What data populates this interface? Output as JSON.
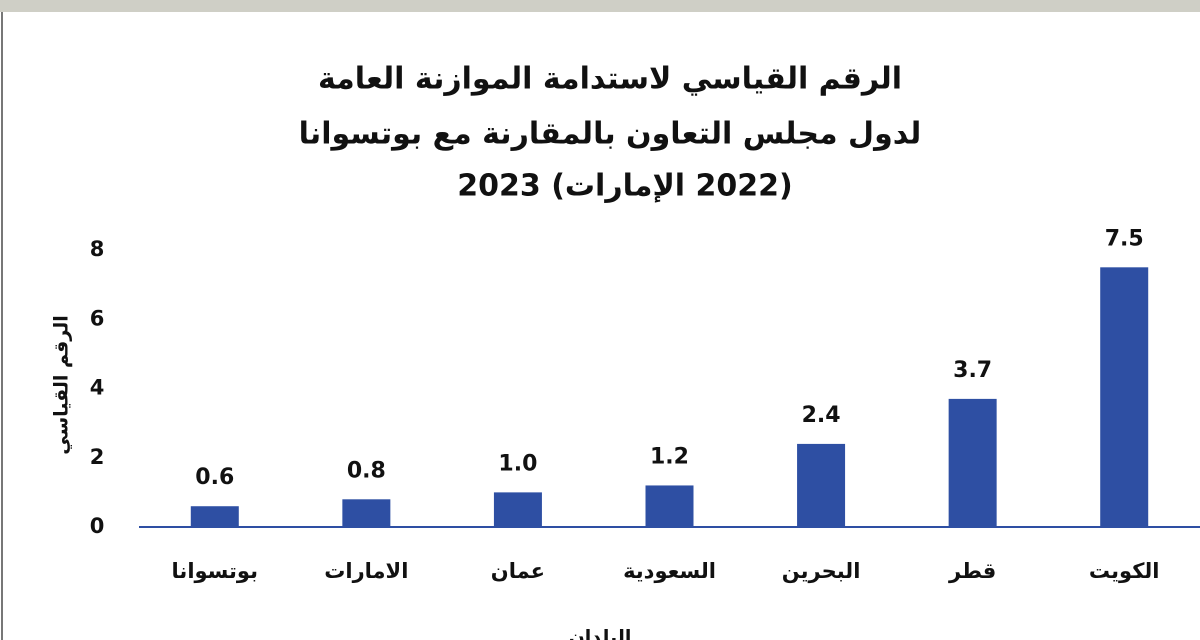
{
  "chart_data": {
    "type": "bar",
    "title": [
      "الرقم القياسي لاستدامة الموازنة العامة",
      "لدول مجلس التعاون بالمقارنة مع بوتسوانا",
      "(2022 الإمارات) 2023"
    ],
    "y_label": "الرقم القياسي",
    "x_label": "البلدان",
    "categories": [
      "بوتسوانا",
      "الامارات",
      "عمان",
      "السعودية",
      "البحرين",
      "قطر",
      "الكويت"
    ],
    "values": [
      0.6,
      0.8,
      1.0,
      1.2,
      2.4,
      3.7,
      7.5
    ],
    "value_labels": [
      "0.6",
      "0.8",
      "1.0",
      "1.2",
      "2.4",
      "3.7",
      "7.5"
    ],
    "color": "#2e4fa3",
    "ylim": [
      0,
      8
    ],
    "yticks": [
      0,
      2,
      4,
      6,
      8
    ],
    "grid": false
  }
}
